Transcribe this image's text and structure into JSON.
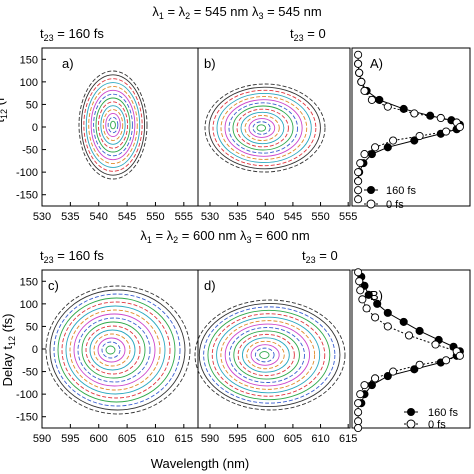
{
  "header_top": {
    "part1": "λ",
    "sub1": "1",
    "part2": " = λ",
    "sub2": "2",
    "part3": " = 545 nm λ",
    "sub3": "3",
    "part4": " = 545 nm"
  },
  "header_mid": {
    "part1": "λ",
    "sub1": "1",
    "part2": " = λ",
    "sub2": "2",
    "part3": " = 600 nm λ",
    "sub3": "3",
    "part4": " = 600 nm"
  },
  "panels": {
    "a": {
      "label": "a)",
      "t23_prefix": "t",
      "t23_sub": "23",
      "t23_value": " = 160 fs"
    },
    "b": {
      "label": "b)",
      "t23_prefix": "t",
      "t23_sub": "23",
      "t23_value": " = 0"
    },
    "c": {
      "label": "c)",
      "t23_prefix": "t",
      "t23_sub": "23",
      "t23_value": " = 160 fs"
    },
    "d": {
      "label": "d)",
      "t23_prefix": "t",
      "t23_sub": "23",
      "t23_value": " = 0"
    },
    "A": {
      "label": "A)"
    },
    "B": {
      "label": "B)"
    }
  },
  "axes": {
    "xlabel": "Wavelength (nm)",
    "ylabel_bottom_prefix": "Delay t",
    "ylabel_bottom_sub": "12",
    "ylabel_bottom_suffix": " (fs)",
    "ylabel_top_visible": "t",
    "ylabel_top_sub": "12",
    "ylabel_top_suffix": " (f",
    "y_ticks": [
      150,
      100,
      50,
      0,
      -50,
      -100,
      -150
    ],
    "x_ticks_top": [
      530,
      535,
      540,
      545,
      550,
      555
    ],
    "x_ticks_bottom": [
      590,
      595,
      600,
      605,
      610,
      615
    ]
  },
  "legend": {
    "filled": "160 fs",
    "open": "0  fs"
  },
  "colors": {
    "contour_outer": "#333333",
    "contour_red": "#e0353f",
    "contour_green": "#2ea84a",
    "contour_blue": "#3a5fd0",
    "contour_magenta": "#cc44cc",
    "contour_orange": "#e08a2a",
    "contour_cyan": "#2aa8c0"
  },
  "chart_data": [
    {
      "type": "line",
      "panel": "A",
      "series": [
        {
          "name": "160 fs",
          "marker": "filled",
          "x": [
            0.02,
            0.03,
            0.05,
            0.1,
            0.22,
            0.45,
            0.7,
            0.9,
            0.98,
            0.95,
            0.8,
            0.55,
            0.3,
            0.15,
            0.07,
            0.03,
            0.02
          ],
          "y": [
            140,
            120,
            100,
            80,
            60,
            40,
            25,
            15,
            5,
            -5,
            -15,
            -30,
            -45,
            -60,
            -80,
            -100,
            -120
          ]
        },
        {
          "name": "0  fs",
          "marker": "open",
          "x": [
            0.02,
            0.02,
            0.03,
            0.05,
            0.08,
            0.15,
            0.3,
            0.55,
            0.8,
            0.95,
            0.98,
            0.85,
            0.6,
            0.35,
            0.18,
            0.08,
            0.04,
            0.02,
            0.02,
            0.02,
            0.02
          ],
          "y": [
            160,
            140,
            120,
            100,
            80,
            60,
            45,
            30,
            20,
            10,
            0,
            -10,
            -20,
            -30,
            -45,
            -60,
            -80,
            -100,
            -120,
            -140,
            -160
          ]
        }
      ],
      "ylim": [
        -175,
        175
      ]
    },
    {
      "type": "line",
      "panel": "B",
      "series": [
        {
          "name": "160 fs",
          "marker": "filled",
          "x": [
            0.05,
            0.08,
            0.12,
            0.2,
            0.3,
            0.45,
            0.6,
            0.78,
            0.92,
            0.98,
            0.95,
            0.8,
            0.55,
            0.3,
            0.15,
            0.08,
            0.05
          ],
          "y": [
            160,
            140,
            120,
            100,
            80,
            60,
            40,
            20,
            5,
            -5,
            -15,
            -30,
            -45,
            -60,
            -80,
            -100,
            -120
          ]
        },
        {
          "name": "0  fs",
          "marker": "open",
          "x": [
            0.02,
            0.03,
            0.04,
            0.06,
            0.1,
            0.18,
            0.3,
            0.5,
            0.75,
            0.95,
            0.98,
            0.85,
            0.6,
            0.35,
            0.18,
            0.08,
            0.04,
            0.02,
            0.02,
            0.02,
            0.02
          ],
          "y": [
            170,
            150,
            130,
            110,
            90,
            70,
            50,
            30,
            10,
            -5,
            -15,
            -25,
            -35,
            -50,
            -65,
            -80,
            -100,
            -120,
            -140,
            -160,
            -175
          ]
        }
      ],
      "ylim": [
        -175,
        175
      ]
    }
  ]
}
